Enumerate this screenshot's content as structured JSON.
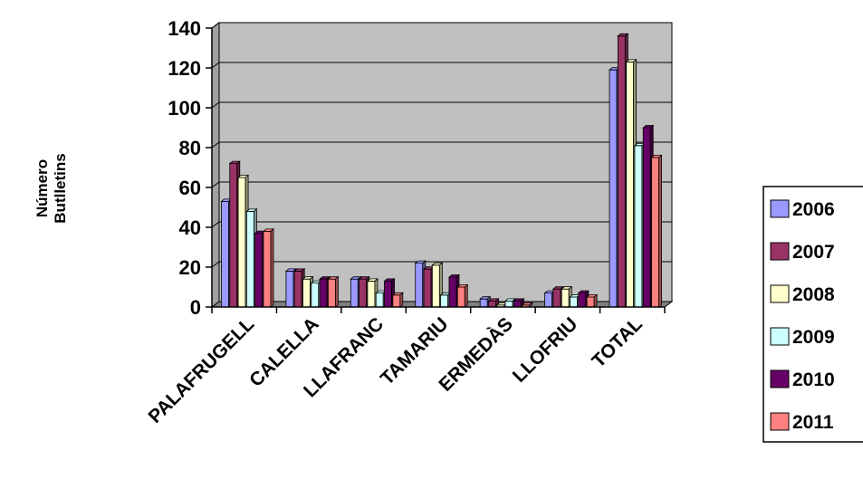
{
  "chart_data": {
    "type": "bar",
    "title": "",
    "ylabel": [
      "Número",
      "Butlletins"
    ],
    "xlabel": "",
    "ylim": [
      0,
      140
    ],
    "yticks": [
      0,
      20,
      40,
      60,
      80,
      100,
      120,
      140
    ],
    "grid": true,
    "legend_position": "right",
    "plot_background": "#c0c0c0",
    "bar_style": "3d",
    "categories": [
      "PALAFRUGELL",
      "CALELLA",
      "LLAFRANC",
      "TAMARIU",
      "ERMEDÀS",
      "LLOFRIU",
      "TOTAL"
    ],
    "series": [
      {
        "name": "2006",
        "color": "#9999ff",
        "values": [
          53,
          18,
          14,
          22,
          4,
          7,
          119
        ]
      },
      {
        "name": "2007",
        "color": "#993366",
        "values": [
          72,
          18,
          14,
          19,
          3,
          9,
          136
        ]
      },
      {
        "name": "2008",
        "color": "#ffffcc",
        "values": [
          65,
          14,
          13,
          21,
          1,
          9,
          123
        ]
      },
      {
        "name": "2009",
        "color": "#ccffff",
        "values": [
          48,
          12,
          7,
          6,
          3,
          5,
          81
        ]
      },
      {
        "name": "2010",
        "color": "#660066",
        "values": [
          37,
          14,
          13,
          15,
          3,
          7,
          90
        ]
      },
      {
        "name": "2011",
        "color": "#ff8080",
        "values": [
          38,
          14,
          6,
          10,
          1,
          5,
          75
        ]
      }
    ]
  }
}
